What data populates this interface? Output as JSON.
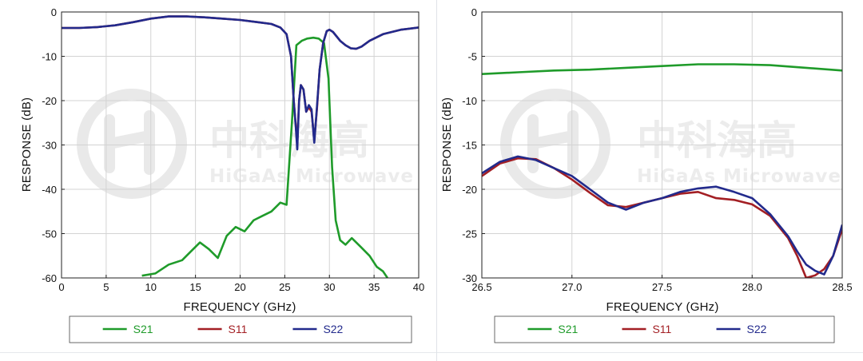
{
  "watermark": {
    "brand_cn": "中科海高",
    "brand_en": "HiGaAs Microwave"
  },
  "legend_colors": {
    "S21": "#1f9b2a",
    "S11": "#a31f24",
    "S22": "#222a8c"
  },
  "chart_data": [
    {
      "type": "line",
      "xlabel": "FREQUENCY (GHz)",
      "ylabel": "RESPONSE (dB)",
      "xlim": [
        0,
        40
      ],
      "ylim": [
        -60,
        0
      ],
      "x_ticks": [
        "0",
        "5",
        "10",
        "15",
        "20",
        "25",
        "30",
        "35",
        "40"
      ],
      "y_ticks": [
        "0",
        "-10",
        "-20",
        "-30",
        "-40",
        "-50",
        "-60"
      ],
      "grid": true,
      "legend": [
        "S21",
        "S11",
        "S22"
      ],
      "legend_placement": "bottom",
      "series": [
        {
          "name": "S21",
          "x": [
            9.0,
            10.5,
            12.0,
            13.5,
            14.5,
            15.5,
            16.5,
            17.5,
            18.5,
            19.5,
            20.5,
            21.5,
            22.5,
            23.5,
            24.5,
            25.2,
            25.8,
            26.3,
            26.9,
            27.5,
            28.2,
            28.8,
            29.4,
            29.9,
            30.3,
            30.7,
            31.2,
            31.8,
            32.5,
            33.5,
            34.5,
            35.3,
            36.0,
            36.5
          ],
          "y": [
            -59.5,
            -59.0,
            -57.0,
            -56.0,
            -54.0,
            -52.0,
            -53.5,
            -55.5,
            -50.5,
            -48.5,
            -49.5,
            -47.0,
            -46.0,
            -45.0,
            -43.0,
            -43.5,
            -25.0,
            -7.5,
            -6.5,
            -6.0,
            -5.8,
            -6.0,
            -7.0,
            -15.0,
            -35.0,
            -47.0,
            -51.5,
            -52.5,
            -51.0,
            -53.0,
            -55.0,
            -57.5,
            -58.5,
            -60.0
          ]
        },
        {
          "name": "S11",
          "x": [
            0,
            2,
            4,
            6,
            8,
            10,
            12,
            14,
            16,
            18,
            20,
            22,
            23.5,
            24.5,
            25.2,
            25.7,
            26.0,
            26.2,
            26.4,
            26.6,
            26.8,
            27.1,
            27.4,
            27.7,
            28.0,
            28.3,
            28.6,
            28.9,
            29.3,
            29.7,
            30.0,
            30.4,
            30.8,
            31.2,
            31.8,
            32.4,
            33.0,
            33.6,
            34.5,
            36,
            38,
            40
          ],
          "y": [
            -3.6,
            -3.6,
            -3.4,
            -3.0,
            -2.3,
            -1.5,
            -1.0,
            -1.0,
            -1.2,
            -1.5,
            -1.8,
            -2.3,
            -2.7,
            -3.5,
            -5.0,
            -10.0,
            -20.0,
            -25.0,
            -29.5,
            -20.0,
            -16.5,
            -17.5,
            -22.5,
            -21.5,
            -22.5,
            -29.0,
            -22.0,
            -13.0,
            -7.0,
            -4.3,
            -4.0,
            -4.5,
            -5.5,
            -6.5,
            -7.5,
            -8.2,
            -8.3,
            -7.8,
            -6.5,
            -5.0,
            -4.0,
            -3.5
          ]
        },
        {
          "name": "S22",
          "x": [
            0,
            2,
            4,
            6,
            8,
            10,
            12,
            14,
            16,
            18,
            20,
            22,
            23.5,
            24.5,
            25.2,
            25.7,
            26.0,
            26.2,
            26.4,
            26.6,
            26.8,
            27.1,
            27.4,
            27.7,
            28.0,
            28.3,
            28.6,
            28.9,
            29.3,
            29.7,
            30.0,
            30.4,
            30.8,
            31.2,
            31.8,
            32.4,
            33.0,
            33.6,
            34.5,
            36,
            38,
            40
          ],
          "y": [
            -3.6,
            -3.6,
            -3.4,
            -3.0,
            -2.3,
            -1.5,
            -1.0,
            -1.0,
            -1.2,
            -1.5,
            -1.8,
            -2.3,
            -2.7,
            -3.5,
            -5.0,
            -10.0,
            -20.0,
            -25.0,
            -31.0,
            -20.0,
            -16.5,
            -17.5,
            -22.5,
            -21.0,
            -22.0,
            -29.5,
            -21.5,
            -13.0,
            -7.0,
            -4.3,
            -4.0,
            -4.5,
            -5.5,
            -6.5,
            -7.5,
            -8.2,
            -8.3,
            -7.8,
            -6.5,
            -5.0,
            -4.0,
            -3.5
          ]
        }
      ]
    },
    {
      "type": "line",
      "xlabel": "FREQUENCY (GHz)",
      "ylabel": "RESPONSE (dB)",
      "xlim": [
        26.5,
        28.5
      ],
      "ylim": [
        -30,
        0
      ],
      "x_ticks": [
        "26.5",
        "27.0",
        "27.5",
        "28.0",
        "28.5"
      ],
      "y_ticks": [
        "0",
        "-5",
        "-10",
        "-15",
        "-20",
        "-25",
        "-30"
      ],
      "grid": true,
      "legend": [
        "S21",
        "S11",
        "S22"
      ],
      "legend_placement": "bottom",
      "series": [
        {
          "name": "S21",
          "x": [
            26.5,
            26.7,
            26.9,
            27.1,
            27.3,
            27.5,
            27.7,
            27.9,
            28.1,
            28.3,
            28.5
          ],
          "y": [
            -7.0,
            -6.8,
            -6.6,
            -6.5,
            -6.3,
            -6.1,
            -5.9,
            -5.9,
            -6.0,
            -6.3,
            -6.6
          ]
        },
        {
          "name": "S11",
          "x": [
            26.5,
            26.6,
            26.7,
            26.8,
            26.9,
            27.0,
            27.1,
            27.2,
            27.3,
            27.4,
            27.5,
            27.6,
            27.7,
            27.8,
            27.9,
            28.0,
            28.1,
            28.2,
            28.25,
            28.3,
            28.35,
            28.4,
            28.45,
            28.5
          ],
          "y": [
            -18.5,
            -17.1,
            -16.5,
            -16.6,
            -17.6,
            -18.9,
            -20.4,
            -21.8,
            -22.0,
            -21.5,
            -21.0,
            -20.5,
            -20.3,
            -21.0,
            -21.2,
            -21.7,
            -23.0,
            -25.5,
            -27.5,
            -30.0,
            -29.7,
            -29.0,
            -27.5,
            -24.5
          ]
        },
        {
          "name": "S22",
          "x": [
            26.5,
            26.6,
            26.7,
            26.8,
            26.9,
            27.0,
            27.1,
            27.2,
            27.3,
            27.4,
            27.5,
            27.6,
            27.7,
            27.8,
            27.9,
            28.0,
            28.1,
            28.2,
            28.25,
            28.3,
            28.35,
            28.4,
            28.45,
            28.5
          ],
          "y": [
            -18.2,
            -16.9,
            -16.3,
            -16.7,
            -17.6,
            -18.5,
            -20.0,
            -21.5,
            -22.3,
            -21.5,
            -21.0,
            -20.3,
            -19.9,
            -19.7,
            -20.3,
            -21.0,
            -22.8,
            -25.3,
            -27.0,
            -28.5,
            -29.2,
            -29.6,
            -27.5,
            -24.0
          ]
        }
      ]
    }
  ]
}
